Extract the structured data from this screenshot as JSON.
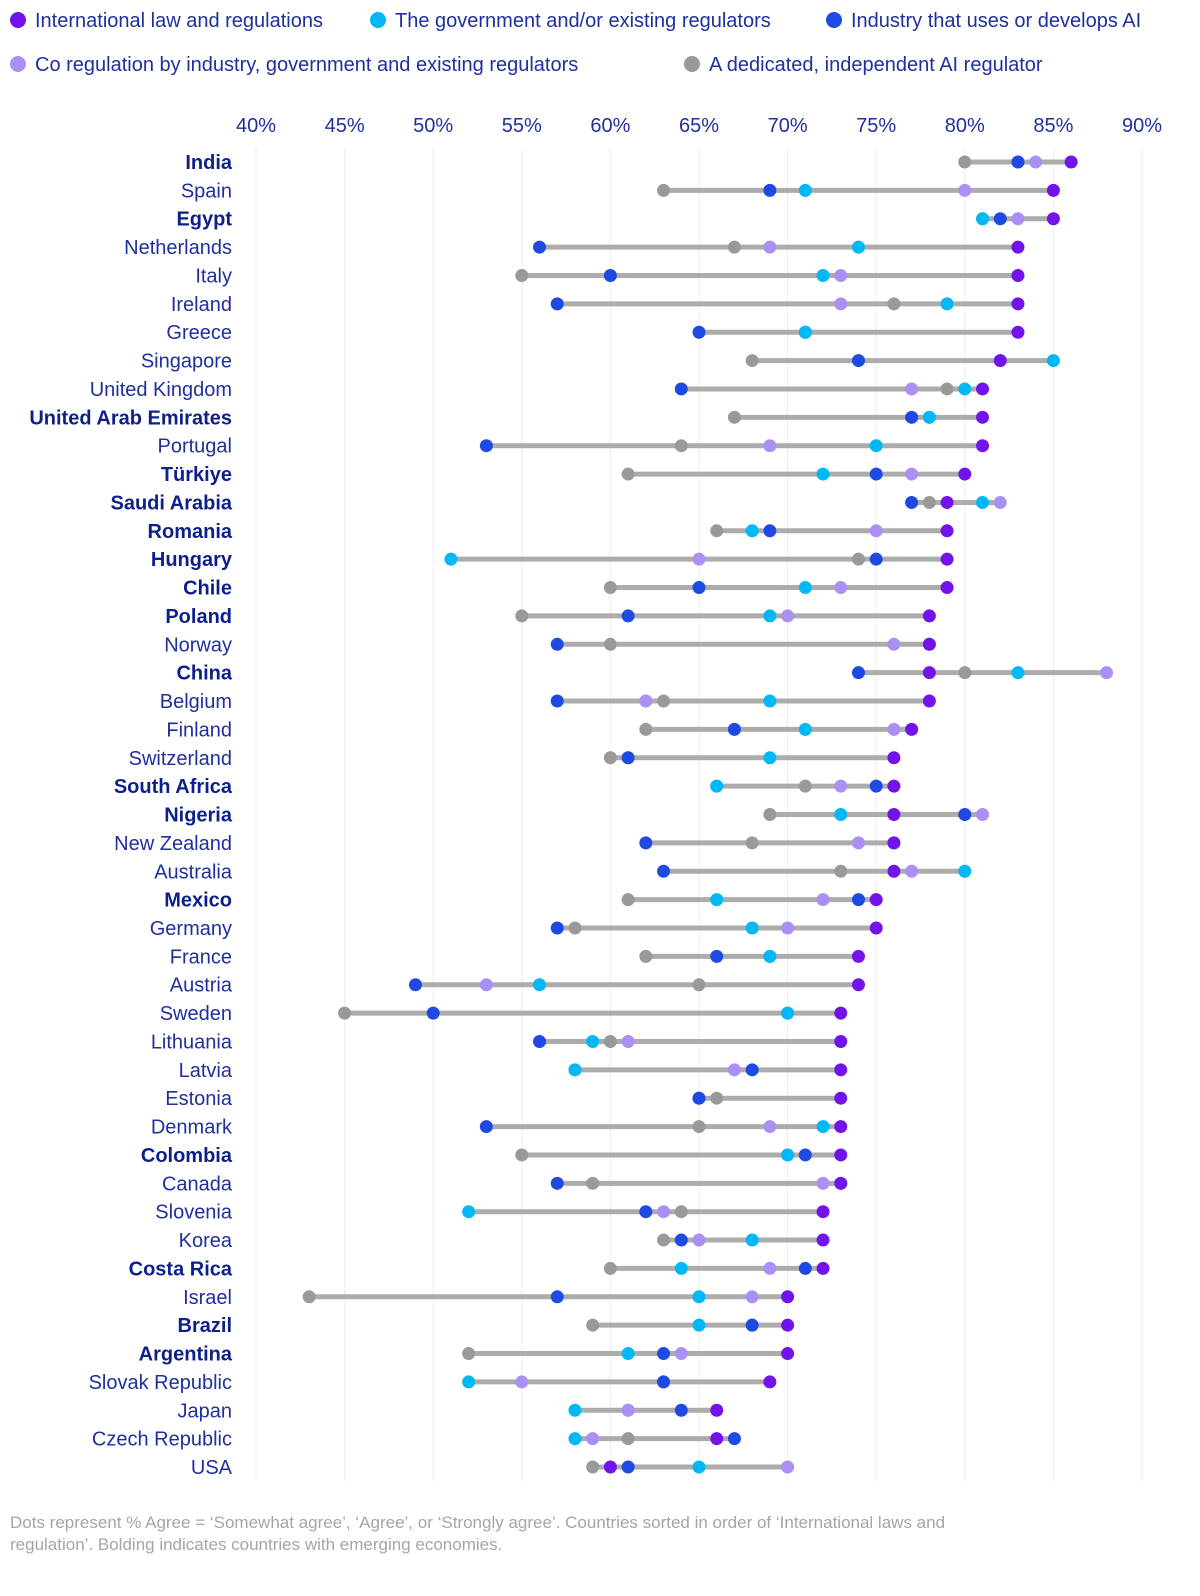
{
  "chart_data": {
    "type": "dot-range",
    "x_tick_labels": [
      "40%",
      "45%",
      "50%",
      "55%",
      "60%",
      "65%",
      "70%",
      "75%",
      "80%",
      "85%",
      "90%"
    ],
    "xlim": [
      40,
      90
    ],
    "grid": true,
    "legend_position": "top",
    "series": [
      {
        "key": "intl",
        "name": "International law and regulations",
        "color": "#7213ea"
      },
      {
        "key": "gov",
        "name": "The government and/or existing regulators",
        "color": "#00b8f5"
      },
      {
        "key": "ind",
        "name": "Industry that uses or develops AI",
        "color": "#1e49e2"
      },
      {
        "key": "co",
        "name": "Co regulation by industry, government and existing regulators",
        "color": "#ab8ff2"
      },
      {
        "key": "ded",
        "name": "A dedicated, independent AI regulator",
        "color": "#999999"
      }
    ],
    "range_line_color": "#acacac",
    "countries": [
      {
        "name": "India",
        "emerging": true,
        "intl": 86,
        "gov": 83,
        "ind": 83,
        "co": 84,
        "ded": 80
      },
      {
        "name": "Spain",
        "emerging": false,
        "intl": 85,
        "gov": 71,
        "ind": 69,
        "co": 80,
        "ded": 63
      },
      {
        "name": "Egypt",
        "emerging": true,
        "intl": 85,
        "gov": 81,
        "ind": 82,
        "co": 83,
        "ded": 81
      },
      {
        "name": "Netherlands",
        "emerging": false,
        "intl": 83,
        "gov": 74,
        "ind": 56,
        "co": 69,
        "ded": 67
      },
      {
        "name": "Italy",
        "emerging": false,
        "intl": 83,
        "gov": 72,
        "ind": 60,
        "co": 73,
        "ded": 55
      },
      {
        "name": "Ireland",
        "emerging": false,
        "intl": 83,
        "gov": 79,
        "ind": 57,
        "co": 73,
        "ded": 76
      },
      {
        "name": "Greece",
        "emerging": false,
        "intl": 83,
        "gov": 71,
        "ind": 65,
        "co": 71,
        "ded": 71
      },
      {
        "name": "Singapore",
        "emerging": false,
        "intl": 82,
        "gov": 85,
        "ind": 74,
        "co": 82,
        "ded": 68
      },
      {
        "name": "United Kingdom",
        "emerging": false,
        "intl": 81,
        "gov": 80,
        "ind": 64,
        "co": 77,
        "ded": 79
      },
      {
        "name": "United Arab Emirates",
        "emerging": true,
        "intl": 81,
        "gov": 78,
        "ind": 77,
        "co": 78,
        "ded": 67
      },
      {
        "name": "Portugal",
        "emerging": false,
        "intl": 81,
        "gov": 75,
        "ind": 53,
        "co": 69,
        "ded": 64
      },
      {
        "name": "Türkiye",
        "emerging": true,
        "intl": 80,
        "gov": 72,
        "ind": 75,
        "co": 77,
        "ded": 61
      },
      {
        "name": "Saudi Arabia",
        "emerging": true,
        "intl": 79,
        "gov": 81,
        "ind": 77,
        "co": 82,
        "ded": 78
      },
      {
        "name": "Romania",
        "emerging": true,
        "intl": 79,
        "gov": 68,
        "ind": 69,
        "co": 75,
        "ded": 66
      },
      {
        "name": "Hungary",
        "emerging": true,
        "intl": 79,
        "gov": 51,
        "ind": 75,
        "co": 65,
        "ded": 74
      },
      {
        "name": "Chile",
        "emerging": true,
        "intl": 79,
        "gov": 71,
        "ind": 65,
        "co": 73,
        "ded": 60
      },
      {
        "name": "Poland",
        "emerging": true,
        "intl": 78,
        "gov": 69,
        "ind": 61,
        "co": 70,
        "ded": 55
      },
      {
        "name": "Norway",
        "emerging": false,
        "intl": 78,
        "gov": 78,
        "ind": 57,
        "co": 76,
        "ded": 60
      },
      {
        "name": "China",
        "emerging": true,
        "intl": 78,
        "gov": 83,
        "ind": 74,
        "co": 88,
        "ded": 80
      },
      {
        "name": "Belgium",
        "emerging": false,
        "intl": 78,
        "gov": 69,
        "ind": 57,
        "co": 62,
        "ded": 63
      },
      {
        "name": "Finland",
        "emerging": false,
        "intl": 77,
        "gov": 71,
        "ind": 67,
        "co": 76,
        "ded": 62
      },
      {
        "name": "Switzerland",
        "emerging": false,
        "intl": 76,
        "gov": 69,
        "ind": 61,
        "co": 61,
        "ded": 60
      },
      {
        "name": "South Africa",
        "emerging": true,
        "intl": 76,
        "gov": 66,
        "ind": 75,
        "co": 73,
        "ded": 71
      },
      {
        "name": "Nigeria",
        "emerging": true,
        "intl": 76,
        "gov": 73,
        "ind": 80,
        "co": 81,
        "ded": 69
      },
      {
        "name": "New Zealand",
        "emerging": false,
        "intl": 76,
        "gov": 76,
        "ind": 62,
        "co": 74,
        "ded": 68
      },
      {
        "name": "Australia",
        "emerging": false,
        "intl": 76,
        "gov": 80,
        "ind": 63,
        "co": 77,
        "ded": 73
      },
      {
        "name": "Mexico",
        "emerging": true,
        "intl": 75,
        "gov": 66,
        "ind": 74,
        "co": 72,
        "ded": 61
      },
      {
        "name": "Germany",
        "emerging": false,
        "intl": 75,
        "gov": 68,
        "ind": 57,
        "co": 70,
        "ded": 58
      },
      {
        "name": "France",
        "emerging": false,
        "intl": 74,
        "gov": 69,
        "ind": 66,
        "co": 69,
        "ded": 62
      },
      {
        "name": "Austria",
        "emerging": false,
        "intl": 74,
        "gov": 56,
        "ind": 49,
        "co": 53,
        "ded": 65
      },
      {
        "name": "Sweden",
        "emerging": false,
        "intl": 73,
        "gov": 70,
        "ind": 50,
        "co": 70,
        "ded": 45
      },
      {
        "name": "Lithuania",
        "emerging": false,
        "intl": 73,
        "gov": 59,
        "ind": 56,
        "co": 61,
        "ded": 60
      },
      {
        "name": "Latvia",
        "emerging": false,
        "intl": 73,
        "gov": 58,
        "ind": 68,
        "co": 67,
        "ded": 58
      },
      {
        "name": "Estonia",
        "emerging": false,
        "intl": 73,
        "gov": 65,
        "ind": 65,
        "co": 65,
        "ded": 66
      },
      {
        "name": "Denmark",
        "emerging": false,
        "intl": 73,
        "gov": 72,
        "ind": 53,
        "co": 69,
        "ded": 65
      },
      {
        "name": "Colombia",
        "emerging": true,
        "intl": 73,
        "gov": 70,
        "ind": 71,
        "co": 70,
        "ded": 55
      },
      {
        "name": "Canada",
        "emerging": false,
        "intl": 73,
        "gov": 73,
        "ind": 57,
        "co": 72,
        "ded": 59
      },
      {
        "name": "Slovenia",
        "emerging": false,
        "intl": 72,
        "gov": 52,
        "ind": 62,
        "co": 63,
        "ded": 64
      },
      {
        "name": "Korea",
        "emerging": false,
        "intl": 72,
        "gov": 68,
        "ind": 64,
        "co": 65,
        "ded": 63
      },
      {
        "name": "Costa Rica",
        "emerging": true,
        "intl": 72,
        "gov": 64,
        "ind": 71,
        "co": 69,
        "ded": 60
      },
      {
        "name": "Israel",
        "emerging": false,
        "intl": 70,
        "gov": 65,
        "ind": 57,
        "co": 68,
        "ded": 43
      },
      {
        "name": "Brazil",
        "emerging": true,
        "intl": 70,
        "gov": 65,
        "ind": 68,
        "co": 68,
        "ded": 59
      },
      {
        "name": "Argentina",
        "emerging": true,
        "intl": 70,
        "gov": 61,
        "ind": 63,
        "co": 64,
        "ded": 52
      },
      {
        "name": "Slovak Republic",
        "emerging": false,
        "intl": 69,
        "gov": 52,
        "ind": 63,
        "co": 55,
        "ded": 63
      },
      {
        "name": "Japan",
        "emerging": false,
        "intl": 66,
        "gov": 58,
        "ind": 64,
        "co": 61,
        "ded": 61
      },
      {
        "name": "Czech Republic",
        "emerging": false,
        "intl": 66,
        "gov": 58,
        "ind": 67,
        "co": 59,
        "ded": 61
      },
      {
        "name": "USA",
        "emerging": false,
        "intl": 60,
        "gov": 65,
        "ind": 61,
        "co": 70,
        "ded": 59
      }
    ]
  },
  "footnote": "Dots represent % Agree = ‘Somewhat agree’, ‘Agree’, or ‘Strongly agree’. Countries sorted in order of ‘International laws and regulation’. Bolding indicates countries with emerging economies."
}
